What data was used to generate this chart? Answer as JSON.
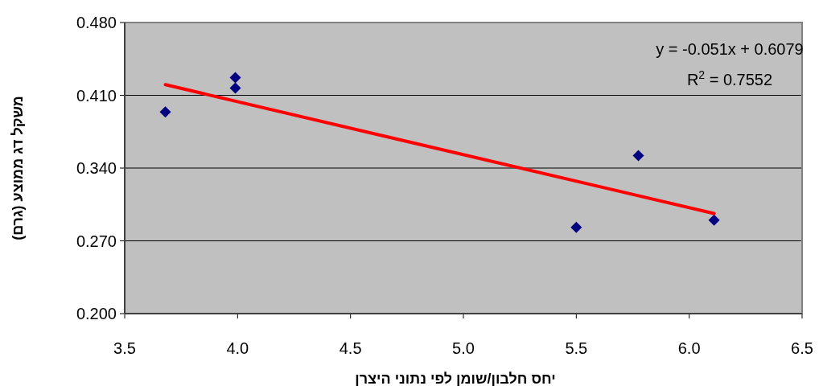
{
  "chart_data": {
    "type": "scatter",
    "xlabel": "יחס חלבון/שומן לפי נתוני היצרן",
    "ylabel": "משקל דג ממוצע (גרם)",
    "annotations": [
      "y = -0.051x + 0.6079",
      "R$^{2}$ = 0.7552"
    ],
    "series": [
      {
        "color": "#000080",
        "marker": "diamond",
        "x": [
          3.68,
          3.99,
          3.99,
          5.5,
          5.775,
          6.11
        ],
        "values": [
          0.394,
          0.427,
          0.417,
          0.283,
          0.352,
          0.29
        ]
      },
      {
        "type": "line",
        "color": "#ff0000",
        "marker": "none",
        "line_style": "solid",
        "x": [
          3.68,
          6.11
        ],
        "values": [
          0.4202,
          0.2963
        ]
      }
    ],
    "xlim": [
      3.5,
      6.5
    ],
    "xticks": [
      {
        "value": 3.5,
        "label": "3.5"
      },
      {
        "value": 4.0,
        "label": "4.0"
      },
      {
        "value": 4.5,
        "label": "4.5"
      },
      {
        "value": 5.0,
        "label": "5.0"
      },
      {
        "value": 5.5,
        "label": "5.5"
      },
      {
        "value": 6.0,
        "label": "6.0"
      },
      {
        "value": 6.5,
        "label": "6.5"
      }
    ],
    "ylim": [
      0.2,
      0.48
    ],
    "yticks": [
      {
        "value": 0.2,
        "label": "0.200"
      },
      {
        "value": 0.27,
        "label": "0.270"
      },
      {
        "value": 0.34,
        "label": "0.340"
      },
      {
        "value": 0.41,
        "label": "0.410"
      },
      {
        "value": 0.48,
        "label": "0.480"
      }
    ],
    "grid": "y"
  }
}
